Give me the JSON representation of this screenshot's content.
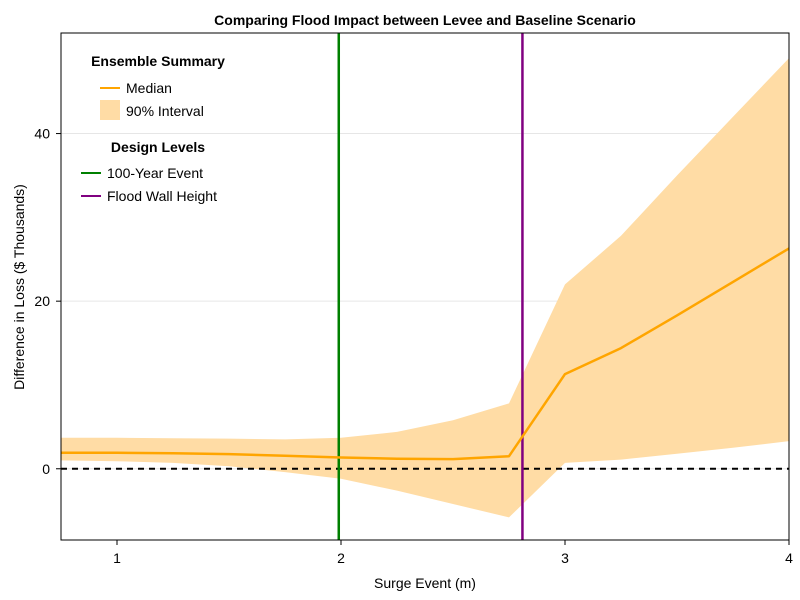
{
  "chart_data": {
    "type": "line",
    "title": "Comparing Flood Impact between Levee and Baseline Scenario",
    "xlabel": "Surge Event (m)",
    "ylabel": "Difference in Loss ($ Thousands)",
    "xlim": [
      0.75,
      4.0
    ],
    "ylim": [
      -8.5,
      52
    ],
    "xticks": [
      1,
      2,
      3,
      4
    ],
    "yticks": [
      0,
      20,
      40
    ],
    "grid": true,
    "series": [
      {
        "name": "Median",
        "color": "#ffa500",
        "x": [
          0.75,
          1.0,
          1.25,
          1.5,
          1.75,
          2.0,
          2.25,
          2.5,
          2.75,
          3.0,
          3.25,
          3.5,
          3.75,
          4.0
        ],
        "y": [
          1.9,
          1.9,
          1.85,
          1.75,
          1.55,
          1.35,
          1.2,
          1.15,
          1.5,
          11.3,
          14.4,
          18.3,
          22.3,
          26.3
        ]
      }
    ],
    "band": {
      "name": "90% Interval",
      "color": "#ffdca5",
      "x": [
        0.75,
        1.0,
        1.25,
        1.5,
        1.75,
        2.0,
        2.25,
        2.5,
        2.75,
        3.0,
        3.25,
        3.5,
        3.75,
        4.0
      ],
      "lower": [
        1.0,
        0.9,
        0.7,
        0.3,
        -0.4,
        -1.2,
        -2.6,
        -4.2,
        -5.8,
        0.7,
        1.1,
        1.8,
        2.5,
        3.3
      ],
      "upper": [
        3.7,
        3.7,
        3.65,
        3.6,
        3.5,
        3.7,
        4.4,
        5.8,
        7.8,
        22.0,
        27.8,
        35.0,
        42.0,
        49.0
      ]
    },
    "reference_line": {
      "y": 0,
      "color": "#000000",
      "style": "dashed"
    },
    "vlines": [
      {
        "name": "100-Year Event",
        "x": 1.99,
        "color": "#008000"
      },
      {
        "name": "Flood Wall Height",
        "x": 2.81,
        "color": "#800080"
      }
    ],
    "legend": {
      "placement": "top-left",
      "groups": [
        {
          "title": "Ensemble Summary",
          "entries": [
            "Median",
            "90% Interval"
          ]
        },
        {
          "title": "Design Levels",
          "entries": [
            "100-Year Event",
            "Flood Wall Height"
          ]
        }
      ]
    }
  }
}
